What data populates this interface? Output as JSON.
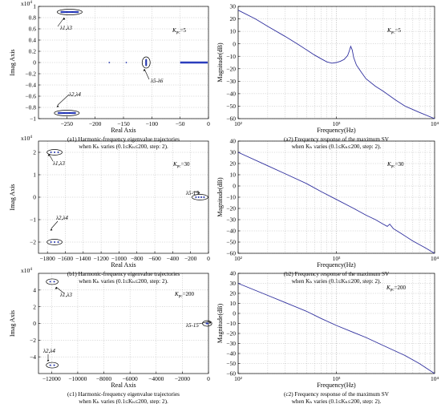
{
  "chart_data": [
    {
      "type": "scatter",
      "panel": "a1",
      "caption_line1": "(a1) Harmonic-frequency eigenvalue trajectories",
      "caption_line2": "when Kₕ varies (0.1≤Kₕ≤200, step: 2).",
      "xlabel": "Real Axis",
      "ylabel": "Imag Axis",
      "exponent": "x10⁴",
      "xlim": [
        -300,
        0
      ],
      "ylim": [
        -1,
        1
      ],
      "xticks": [
        -250,
        -200,
        -150,
        -100,
        -50,
        0
      ],
      "yticks": [
        -1,
        -0.8,
        -0.6,
        -0.4,
        -0.2,
        0,
        0.2,
        0.4,
        0.6,
        0.8,
        1
      ],
      "xticklabels": [
        "−250",
        "−200",
        "−150",
        "−100",
        "−50",
        "0"
      ],
      "yticklabels": [
        "−1",
        "−0.8",
        "−0.6",
        "−0.4",
        "−0.2",
        "0",
        "0.2",
        "0.4",
        "0.6",
        "0.8",
        "1"
      ],
      "kpc_text": "Kpc=5",
      "clusters": [
        {
          "label": "λ1,λ3",
          "x": [
            -260,
            -250,
            -240,
            -230
          ],
          "y": [
            0.9,
            0.9,
            0.9,
            0.9
          ]
        },
        {
          "label": "λ2,λ4",
          "x": [
            -265,
            -255,
            -245,
            -235
          ],
          "y": [
            -0.9,
            -0.9,
            -0.9,
            -0.9
          ]
        },
        {
          "label": "λ5-λ6",
          "x": [
            -110,
            -110,
            -110,
            -110,
            -110
          ],
          "y": [
            0.05,
            0.025,
            0,
            -0.025,
            -0.05
          ]
        },
        {
          "label": "",
          "x": [
            -50,
            -40,
            -30,
            -20,
            -10,
            -3
          ],
          "y": [
            0,
            0,
            0,
            0,
            0,
            0
          ]
        }
      ]
    },
    {
      "type": "line",
      "panel": "a2",
      "caption_line1": "(a2) Frequency response of the maximum SV",
      "caption_line2": "when Kₕ varies (0.1≤Kₕ≤200, step: 2).",
      "xlabel": "Frequency(Hz)",
      "ylabel": "Magnitude(dB)",
      "xscale": "log",
      "xlim": [
        100,
        10000
      ],
      "ylim": [
        -60,
        30
      ],
      "xticklabels": [
        "10²",
        "10³",
        "10⁴"
      ],
      "yticks": [
        -60,
        -50,
        -40,
        -30,
        -20,
        -10,
        0,
        10,
        20,
        30
      ],
      "kpc_text": "Kpc=5",
      "x": [
        100,
        150,
        200,
        300,
        400,
        500,
        600,
        700,
        800,
        900,
        1000,
        1100,
        1200,
        1300,
        1350,
        1400,
        1450,
        1500,
        1600,
        1800,
        2000,
        2500,
        3000,
        4000,
        5000,
        7000,
        10000
      ],
      "y": [
        27,
        20,
        14,
        6,
        0,
        -5,
        -9,
        -12,
        -14.5,
        -15.5,
        -15,
        -14,
        -12.5,
        -9.5,
        -6,
        -2,
        -5,
        -11,
        -17,
        -23,
        -28,
        -34,
        -38,
        -45,
        -50,
        -55,
        -60
      ]
    },
    {
      "type": "scatter",
      "panel": "b1",
      "caption_line1": "(b1) Harmonic-frequency eigenvalue trajectories",
      "caption_line2": "when Kₕ varies (0.1≤Kₕ≤200, step: 2).",
      "xlabel": "Real Axis",
      "ylabel": "Imag Axis",
      "exponent": "x10⁴",
      "xlim": [
        -1900,
        0
      ],
      "ylim": [
        -2.5,
        2.5
      ],
      "xticks": [
        -1800,
        -1600,
        -1400,
        -1200,
        -1000,
        -800,
        -600,
        -400,
        -200,
        0
      ],
      "yticks": [
        -2,
        -1,
        0,
        1,
        2
      ],
      "xticklabels": [
        "−1800",
        "−1600",
        "−1400",
        "−1200",
        "−1000",
        "−800",
        "−600",
        "−400",
        "−200",
        "0"
      ],
      "yticklabels": [
        "−2",
        "−1",
        "0",
        "1",
        "2"
      ],
      "kpc_text": "Kpc=30",
      "clusters": [
        {
          "label": "λ1,λ3",
          "x": [
            -1760,
            -1720,
            -1680
          ],
          "y": [
            2,
            2,
            2
          ]
        },
        {
          "label": "λ2,λ4",
          "x": [
            -1760,
            -1720,
            -1680
          ],
          "y": [
            -2,
            -2,
            -2
          ]
        },
        {
          "label": "λ5-15",
          "x": [
            -140,
            -110,
            -80,
            -50
          ],
          "y": [
            0,
            0,
            0,
            0
          ]
        }
      ]
    },
    {
      "type": "line",
      "panel": "b2",
      "caption_line1": "(b2) Frequency response of the maximum SV",
      "caption_line2": "when Kₕ varies (0.1≤Kₕ≤200, step: 2).",
      "xlabel": "Frequency(Hz)",
      "ylabel": "Magnitude(dB)",
      "xscale": "log",
      "xlim": [
        100,
        10000
      ],
      "ylim": [
        -60,
        40
      ],
      "xticklabels": [
        "10²",
        "10³",
        "10⁴"
      ],
      "yticks": [
        -60,
        -50,
        -40,
        -30,
        -20,
        -10,
        0,
        10,
        20,
        30,
        40
      ],
      "kpc_text": "Kpc=30",
      "x": [
        100,
        200,
        300,
        500,
        700,
        1000,
        1500,
        2000,
        2500,
        3000,
        3300,
        3500,
        3800,
        4500,
        6000,
        8000,
        10000
      ],
      "y": [
        30,
        18,
        11,
        2,
        -5,
        -12,
        -20,
        -26,
        -30,
        -34,
        -36,
        -34,
        -38,
        -42,
        -49,
        -55,
        -60
      ]
    },
    {
      "type": "scatter",
      "panel": "c1",
      "caption_line1": "(c1) Harmonic-frequency eigenvalue trajectories",
      "caption_line2": "when Kₕ varies (0.1≤Kₕ≤200, step: 2).",
      "xlabel": "Real Axis",
      "ylabel": "Imag Axis",
      "exponent": "x10⁴",
      "xlim": [
        -13000,
        0
      ],
      "ylim": [
        -6,
        6
      ],
      "xticks": [
        -12000,
        -10000,
        -8000,
        -6000,
        -4000,
        -2000,
        0
      ],
      "yticks": [
        -4,
        -2,
        0,
        2,
        4
      ],
      "xticklabels": [
        "−12000",
        "−10000",
        "−8000",
        "−6000",
        "−4000",
        "−2000",
        "0"
      ],
      "yticklabels": [
        "−4",
        "−2",
        "0",
        "2",
        "4"
      ],
      "kpc_text": "Kpc=200",
      "clusters": [
        {
          "label": "λ1,λ3",
          "x": [
            -12100,
            -11800
          ],
          "y": [
            5,
            5
          ]
        },
        {
          "label": "λ2,λ4",
          "x": [
            -12100,
            -11800
          ],
          "y": [
            -5,
            -5
          ]
        },
        {
          "label": "λ5-15",
          "x": [
            -150,
            -100,
            -50
          ],
          "y": [
            0,
            0,
            0
          ]
        }
      ]
    },
    {
      "type": "line",
      "panel": "c2",
      "caption_line1": "(c2) Frequency response of the maximum SV",
      "caption_line2": "when Kₕ varies (0.1≤Kₕ≤200, step: 2).",
      "xlabel": "Frequency(Hz)",
      "ylabel": "Magnitude(dB)",
      "xscale": "log",
      "xlim": [
        100,
        10000
      ],
      "ylim": [
        -60,
        40
      ],
      "xticklabels": [
        "10²",
        "10³",
        "10⁴"
      ],
      "yticks": [
        -60,
        -50,
        -40,
        -30,
        -20,
        -10,
        0,
        10,
        20,
        30,
        40
      ],
      "kpc_text": "Kpc=200",
      "x": [
        100,
        200,
        300,
        500,
        700,
        1000,
        1500,
        2000,
        3000,
        5000,
        7000,
        10000
      ],
      "y": [
        30,
        18,
        11,
        2,
        -5,
        -12,
        -19,
        -24,
        -32,
        -42,
        -50,
        -60
      ]
    }
  ]
}
